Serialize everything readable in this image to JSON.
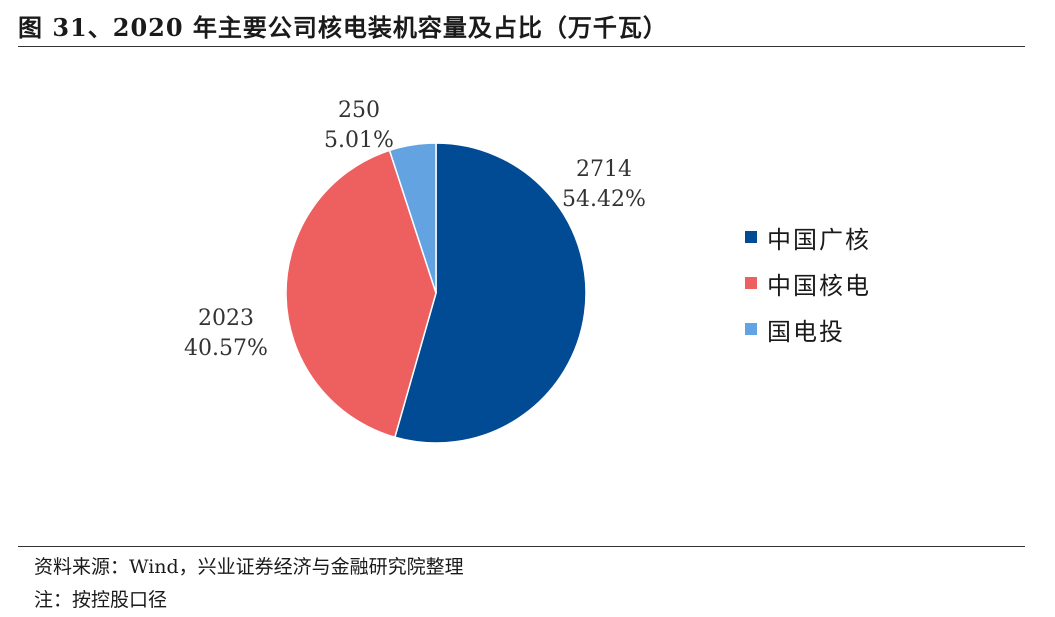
{
  "title": "图 31、2020 年主要公司核电装机容量及占比（万千瓦）",
  "chart_data": {
    "type": "pie",
    "title": "图 31、2020 年主要公司核电装机容量及占比（万千瓦）",
    "slices": [
      {
        "label": "中国广核",
        "value": 2714,
        "percent": "54.42%",
        "color": "#004B93"
      },
      {
        "label": "中国核电",
        "value": 2023,
        "percent": "40.57%",
        "color": "#EE5F5F"
      },
      {
        "label": "国电投",
        "value": 250,
        "percent": "5.01%",
        "color": "#64A3E2"
      }
    ],
    "legend_position": "right",
    "start_angle": "12 o'clock, clockwise"
  },
  "footer": {
    "source": "资料来源：Wind，兴业证券经济与金融研究院整理",
    "note": "注：按控股口径"
  }
}
